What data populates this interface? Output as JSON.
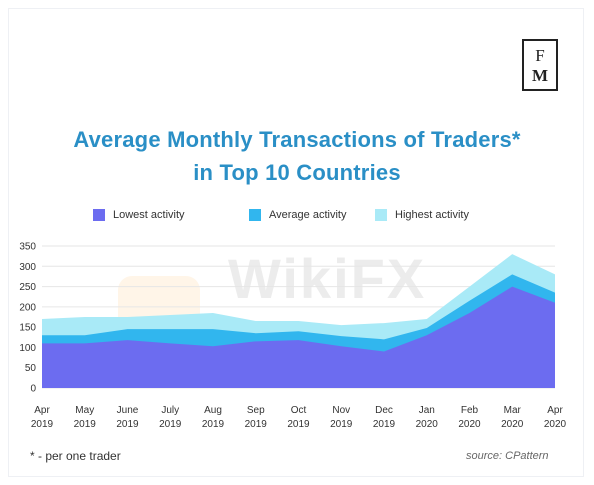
{
  "logo": {
    "line1": "F",
    "line2": "M"
  },
  "footnote": "* - per one trader",
  "source": "source: CPattern",
  "watermark": "WikiFX",
  "colors": {
    "lowest": "#6c6cf0",
    "average": "#31b6ee",
    "highest": "#a9eaf7",
    "title": "#2a8fc6",
    "grid": "#e6e6e6"
  },
  "chart_data": {
    "type": "area",
    "title": "Average Monthly Transactions of Traders*",
    "subtitle": "in Top 10 Countries",
    "xlabel": "",
    "ylabel": "",
    "categories": [
      "Apr",
      "May",
      "June",
      "July",
      "Aug",
      "Sep",
      "Oct",
      "Nov",
      "Dec",
      "Jan",
      "Feb",
      "Mar",
      "Apr"
    ],
    "category_years": [
      "2019",
      "2019",
      "2019",
      "2019",
      "2019",
      "2019",
      "2019",
      "2019",
      "2019",
      "2020",
      "2020",
      "2020",
      "2020"
    ],
    "yticks": [
      0,
      50,
      100,
      150,
      200,
      250,
      300,
      350
    ],
    "ylim": [
      0,
      350
    ],
    "grid": true,
    "legend_position": "top",
    "series": [
      {
        "name": "Lowest activity",
        "values": [
          110,
          110,
          118,
          110,
          103,
          115,
          118,
          103,
          90,
          130,
          185,
          250,
          210
        ]
      },
      {
        "name": "Average activity",
        "values": [
          130,
          130,
          145,
          145,
          145,
          135,
          140,
          128,
          120,
          148,
          215,
          280,
          235
        ]
      },
      {
        "name": "Highest activity",
        "values": [
          170,
          175,
          175,
          180,
          185,
          165,
          165,
          155,
          160,
          170,
          250,
          330,
          280
        ]
      }
    ]
  }
}
